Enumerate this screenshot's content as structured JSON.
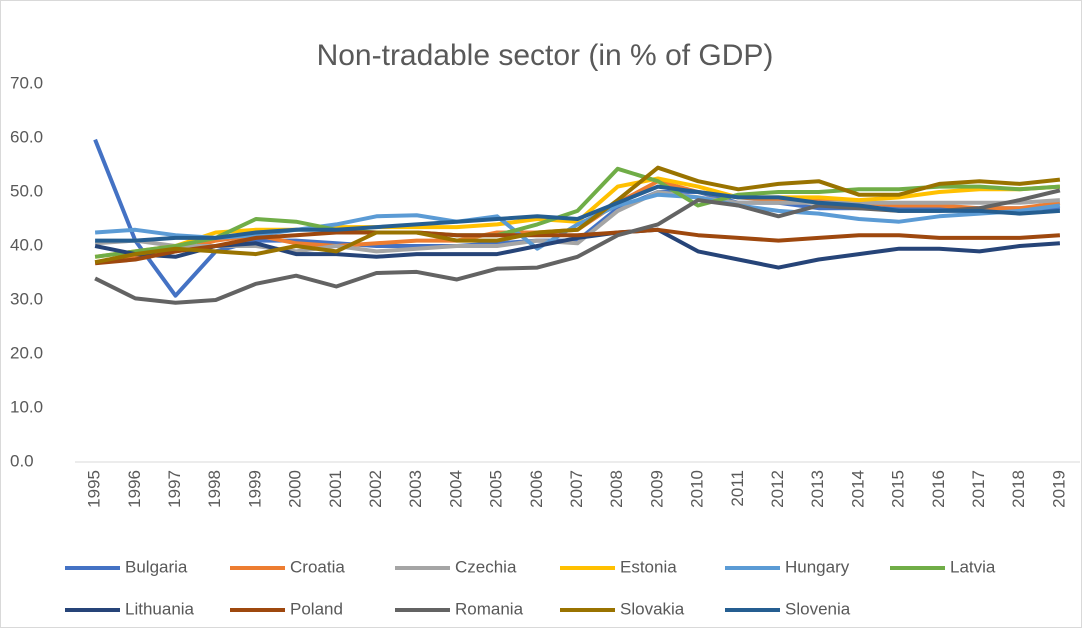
{
  "chart_data": {
    "type": "line",
    "title": "Non-tradable sector (in % of GDP)",
    "categories": [
      "1995",
      "1996",
      "1997",
      "1998",
      "1999",
      "2000",
      "2001",
      "2002",
      "2003",
      "2004",
      "2005",
      "2006",
      "2007",
      "2008",
      "2009",
      "2010",
      "2011",
      "2012",
      "2013",
      "2014",
      "2015",
      "2016",
      "2017",
      "2018",
      "2019"
    ],
    "ylim": [
      0,
      70
    ],
    "yticks": [
      {
        "value": 0,
        "label": "0.0"
      },
      {
        "value": 10,
        "label": "10.0"
      },
      {
        "value": 20,
        "label": "20.0"
      },
      {
        "value": 30,
        "label": "30.0"
      },
      {
        "value": 40,
        "label": "40.0"
      },
      {
        "value": 50,
        "label": "50.0"
      },
      {
        "value": 60,
        "label": "60.0"
      },
      {
        "value": 70,
        "label": "70.0"
      }
    ],
    "grid": false,
    "legend": "bottom",
    "series": [
      {
        "name": "Bulgaria",
        "color": "#4472c4",
        "values": [
          59.7,
          41,
          30.8,
          39,
          41,
          41,
          40.5,
          40,
          40,
          40,
          40.5,
          41,
          41,
          47,
          50,
          50,
          48,
          48,
          47,
          47,
          47,
          47,
          47,
          47,
          47
        ]
      },
      {
        "name": "Croatia",
        "color": "#ed7d31",
        "values": [
          37,
          38,
          39,
          41,
          42,
          40.5,
          40,
          40.5,
          41,
          41,
          42.5,
          42.5,
          43,
          48,
          52,
          50,
          49,
          48.5,
          48.5,
          48,
          47.5,
          47.5,
          47,
          47,
          48
        ]
      },
      {
        "name": "Czechia",
        "color": "#a5a5a5",
        "values": [
          40.5,
          41,
          40,
          40,
          40,
          39,
          40,
          39,
          39.5,
          40,
          40,
          41,
          40.5,
          46.5,
          50,
          49,
          48,
          48,
          48,
          48,
          48,
          48,
          48,
          48,
          48.5
        ]
      },
      {
        "name": "Estonia",
        "color": "#ffc000",
        "values": [
          38,
          39,
          40,
          42.5,
          43,
          43,
          43.5,
          43.5,
          43.5,
          43.5,
          44,
          45,
          44.5,
          51,
          52.5,
          51,
          49,
          49,
          49,
          48.5,
          49,
          50,
          50.5,
          50.5,
          51
        ]
      },
      {
        "name": "Hungary",
        "color": "#5b9bd5",
        "values": [
          42.5,
          43,
          42,
          41.5,
          42,
          43,
          44,
          45.5,
          45.7,
          44.5,
          45.5,
          39.5,
          44,
          47.5,
          49.5,
          49,
          47.5,
          46.5,
          46,
          45,
          44.5,
          45.5,
          46,
          46.5,
          47.5
        ]
      },
      {
        "name": "Latvia",
        "color": "#70ad47",
        "values": [
          38,
          39,
          40,
          41.5,
          45,
          44.5,
          43,
          42.5,
          42.5,
          42,
          42,
          44,
          46.5,
          54.3,
          52,
          47.5,
          49.5,
          50,
          50,
          50.5,
          50.5,
          51,
          51,
          50.5,
          51
        ]
      },
      {
        "name": "Lithuania",
        "color": "#264478",
        "values": [
          40,
          38.5,
          38,
          40,
          40.5,
          38.5,
          38.5,
          38,
          38.5,
          38.5,
          38.5,
          40,
          41.5,
          42.5,
          43,
          39,
          37.5,
          36,
          37.5,
          38.5,
          39.5,
          39.5,
          39,
          40,
          40.5
        ]
      },
      {
        "name": "Poland",
        "color": "#9e480e",
        "values": [
          36.8,
          37.5,
          39,
          40,
          41.5,
          42,
          42.5,
          42.5,
          42.5,
          42,
          42,
          42,
          42,
          42.5,
          43,
          42,
          41.5,
          41,
          41.5,
          42,
          42,
          41.5,
          41.5,
          41.5,
          42
        ]
      },
      {
        "name": "Romania",
        "color": "#636363",
        "values": [
          34,
          30.3,
          29.5,
          30,
          33,
          34.5,
          32.5,
          35,
          35.2,
          33.8,
          35.8,
          36,
          38,
          42,
          44,
          48.5,
          47.5,
          45.5,
          47.5,
          47,
          46.5,
          46.5,
          47,
          48.5,
          50.3
        ]
      },
      {
        "name": "Slovakia",
        "color": "#997300",
        "values": [
          37,
          38.5,
          39.5,
          39,
          38.5,
          40,
          39,
          42.5,
          42.5,
          41,
          41,
          42.5,
          43,
          48.5,
          54.5,
          52,
          50.5,
          51.5,
          52,
          49.5,
          49.5,
          51.5,
          52,
          51.5,
          52.3
        ]
      },
      {
        "name": "Slovenia",
        "color": "#255e91",
        "values": [
          41,
          41,
          41.5,
          41.5,
          42.5,
          43,
          43,
          43.5,
          44,
          44.5,
          45,
          45.5,
          45,
          48,
          51,
          50,
          49,
          49,
          48,
          47.5,
          46.5,
          46.5,
          46.5,
          46,
          46.5
        ]
      }
    ]
  }
}
